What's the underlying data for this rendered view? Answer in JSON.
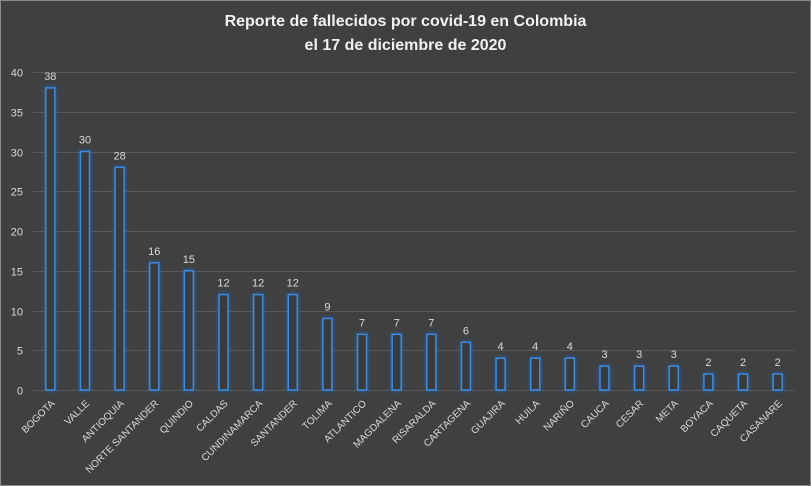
{
  "chart_data": {
    "type": "bar",
    "title": "Reporte de fallecidos por covid-19 en Colombia\nel 17 de diciembre de 2020",
    "xlabel": "",
    "ylabel": "",
    "categories": [
      "BOGOTA",
      "VALLE",
      "ANTIOQUIA",
      "NORTE SANTANDER",
      "QUINDIO",
      "CALDAS",
      "CUNDINAMARCA",
      "SANTANDER",
      "TOLIMA",
      "ATLANTICO",
      "MAGDALENA",
      "RISARALDA",
      "CARTAGENA",
      "GUAJIRA",
      "HUILA",
      "NARIÑO",
      "CAUCA",
      "CESAR",
      "META",
      "BOYACA",
      "CAQUETA",
      "CASANARE"
    ],
    "values": [
      38,
      30,
      28,
      16,
      15,
      12,
      12,
      12,
      9,
      7,
      7,
      7,
      6,
      4,
      4,
      4,
      3,
      3,
      3,
      2,
      2,
      2
    ],
    "ylim": [
      0,
      40
    ],
    "yticks": [
      0,
      5,
      10,
      15,
      20,
      25,
      30,
      35,
      40
    ],
    "grid": true,
    "data_labels": true
  },
  "colors": {
    "background": "#404040",
    "border": "#8a8a8a",
    "title": "#f2f2f2",
    "text": "#d9d9d9",
    "gridline": "#595959",
    "bar_fill": "#3a3a3a",
    "bar_outline": "#3a8be0",
    "bar_glow": "#1f64b5"
  }
}
